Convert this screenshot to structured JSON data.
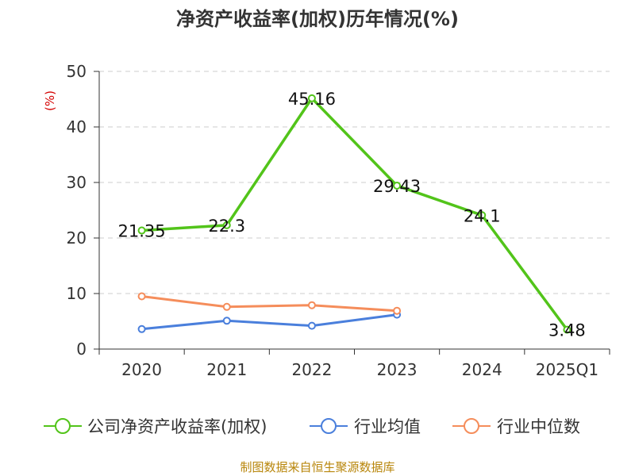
{
  "chart_data": {
    "type": "line",
    "title": "净资产收益率(加权)历年情况(%)",
    "ylabel": "(%)",
    "xlabel": "",
    "categories": [
      "2020",
      "2021",
      "2022",
      "2023",
      "2024",
      "2025Q1"
    ],
    "ylim": [
      0,
      50
    ],
    "yticks": [
      0,
      10,
      20,
      30,
      40,
      50
    ],
    "grid": true,
    "legend": "bottom",
    "series": [
      {
        "name": "公司净资产收益率(加权)",
        "color": "#52c41a",
        "values": [
          21.35,
          22.3,
          45.16,
          29.43,
          24.1,
          3.48
        ],
        "labels": [
          "21.35",
          "22.3",
          "45.16",
          "29.43",
          "24.1",
          "3.48"
        ]
      },
      {
        "name": "行业均值",
        "color": "#4a7fdc",
        "values": [
          3.6,
          5.1,
          4.2,
          6.2,
          null,
          null
        ]
      },
      {
        "name": "行业中位数",
        "color": "#f58d5b",
        "values": [
          9.5,
          7.6,
          7.9,
          6.9,
          null,
          null
        ]
      }
    ]
  },
  "source": "制图数据来自恒生聚源数据库"
}
